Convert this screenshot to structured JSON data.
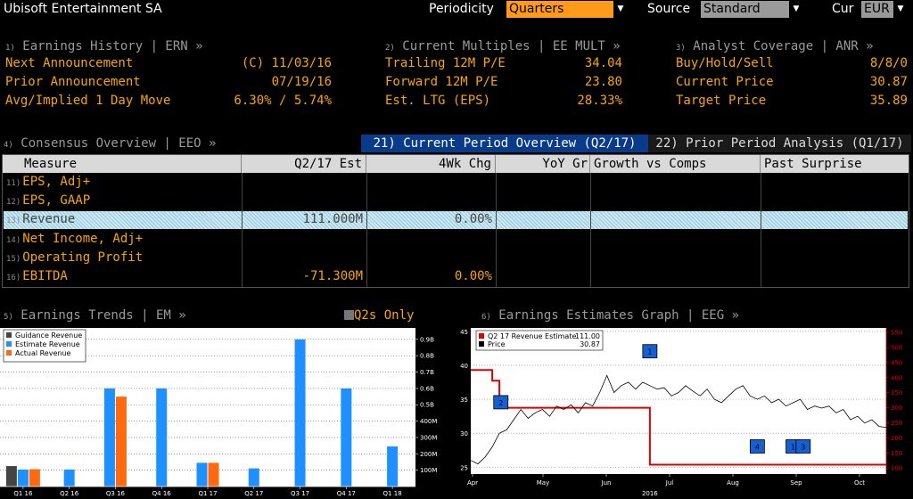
{
  "header": {
    "company": "Ubisoft Entertainment SA",
    "periodicity_label": "Periodicity",
    "periodicity_value": "Quarters",
    "source_label": "Source",
    "source_value": "Standard",
    "cur_label": "Cur",
    "cur_value": "EUR"
  },
  "sections": {
    "ern": {
      "num": "1)",
      "title": "Earnings History | ERN »",
      "rows": [
        {
          "label": "Next Announcement",
          "value": "(C)  11/03/16"
        },
        {
          "label": "Prior Announcement",
          "value": "07/19/16"
        },
        {
          "label": "Avg/Implied 1 Day Move",
          "value": "6.30% / 5.74%"
        }
      ]
    },
    "mult": {
      "num": "2)",
      "title": "Current Multiples | EE MULT »",
      "rows": [
        {
          "label": "Trailing 12M P/E",
          "value": "34.04"
        },
        {
          "label": "Forward 12M P/E",
          "value": "23.80"
        },
        {
          "label": "Est. LTG (EPS)",
          "value": "28.33%"
        }
      ]
    },
    "anr": {
      "num": "3)",
      "title": "Analyst Coverage | ANR »",
      "rows": [
        {
          "label": "Buy/Hold/Sell",
          "value": "8/8/0"
        },
        {
          "label": "Current Price",
          "value": "30.87"
        },
        {
          "label": "Target Price",
          "value": "35.89"
        }
      ]
    }
  },
  "consensus": {
    "num": "4)",
    "title": "Consensus Overview | EEO »",
    "tab_current": "21) Current Period Overview (Q2/17)",
    "tab_prior": "22) Prior Period Analysis (Q1/17)",
    "columns": [
      "Measure",
      "Q2/17 Est",
      "4Wk Chg",
      "YoY Gr",
      "Growth vs Comps",
      "Past Surprise"
    ],
    "rows": [
      {
        "num": "11)",
        "measure": "EPS, Adj+",
        "est": "",
        "chg": ""
      },
      {
        "num": "12)",
        "measure": "EPS, GAAP",
        "est": "",
        "chg": ""
      },
      {
        "num": "13)",
        "measure": "Revenue",
        "est": "111.000M",
        "chg": "0.00%"
      },
      {
        "num": "14)",
        "measure": "Net Income, Adj+",
        "est": "",
        "chg": ""
      },
      {
        "num": "15)",
        "measure": "Operating Profit",
        "est": "",
        "chg": ""
      },
      {
        "num": "16)",
        "measure": "EBITDA",
        "est": "-71.300M",
        "chg": "0.00%"
      }
    ]
  },
  "trends": {
    "num": "5)",
    "title": "Earnings Trends | EM »",
    "toggle_label": "Q2s Only",
    "colors": {
      "guidance": "#444444",
      "estimate": "#1e90ff",
      "actual": "#ff6a10"
    }
  },
  "eeg": {
    "num": "6)",
    "title": "Earnings Estimates Graph | EEG »",
    "colors": {
      "estimate": "#e00000",
      "price": "#ffffff",
      "marker": "#1560d0"
    }
  },
  "chart_data": [
    {
      "type": "bar",
      "legend": [
        "Guidance Revenue",
        "Estimate Revenue",
        "Actual Revenue"
      ],
      "legend_position": "top-left",
      "categories": [
        "Q1 16",
        "Q2 16",
        "Q3 16",
        "Q4 16",
        "Q1 17",
        "Q2 17",
        "Q3 17",
        "Q4 17",
        "Q1 18"
      ],
      "series": [
        {
          "name": "Guidance Revenue",
          "values": [
            0.125,
            null,
            null,
            null,
            null,
            null,
            null,
            null,
            null
          ]
        },
        {
          "name": "Estimate Revenue",
          "values": [
            0.104,
            0.104,
            0.6,
            0.6,
            0.145,
            0.111,
            0.9,
            0.6,
            0.245
          ]
        },
        {
          "name": "Actual Revenue",
          "values": [
            0.106,
            null,
            0.55,
            null,
            0.145,
            null,
            null,
            null,
            null
          ]
        }
      ],
      "y_ticks": [
        "100M",
        "200M",
        "300M",
        "400M",
        "0.5B",
        "0.6B",
        "0.7B",
        "0.8B",
        "0.9B"
      ],
      "ylim": [
        0.0,
        0.97
      ],
      "grid": true
    },
    {
      "type": "line",
      "legend": [
        {
          "name": "Q2 17 Revenue Estimate",
          "value": "111.00"
        },
        {
          "name": "Price",
          "value": "30.87"
        }
      ],
      "legend_position": "top-left",
      "x_ticks": [
        "Apr",
        "May",
        "Jun",
        "Jul",
        "Aug",
        "Sep",
        "Oct"
      ],
      "x_year": "2016",
      "left_ticks": [
        "25",
        "30",
        "35",
        "40",
        "45"
      ],
      "right_ticks": [
        "100",
        "150",
        "200",
        "250",
        "300",
        "350",
        "400",
        "450",
        "500",
        "550"
      ],
      "left_ylim": [
        24,
        45.5
      ],
      "right_ylim": [
        80,
        565
      ],
      "series": [
        {
          "name": "Price",
          "axis": "left",
          "x": [
            0,
            0.5,
            1,
            1.5,
            2,
            2.5,
            3,
            3.5,
            4,
            4.5,
            5,
            5.5,
            6,
            6.5,
            7,
            7.5,
            8,
            8.5,
            9,
            9.5,
            10,
            10.5,
            11,
            11.5,
            12,
            12.5,
            13,
            13.5,
            14,
            14.5,
            15,
            15.5,
            16,
            16.5,
            17,
            17.5,
            18,
            18.5,
            19,
            19.5,
            20,
            20.5,
            21,
            21.5,
            22,
            22.5,
            23,
            23.5,
            24,
            24.5,
            25,
            25.5,
            26,
            26.5,
            27,
            27.5,
            28,
            28.5,
            29
          ],
          "y": [
            26,
            25.5,
            26.5,
            28,
            30,
            30.5,
            32,
            33.5,
            32.2,
            33,
            33.5,
            32.5,
            34,
            33.5,
            34.2,
            33,
            34.5,
            34,
            36,
            38.5,
            36,
            37,
            37.5,
            36.5,
            37.5,
            37,
            36.5,
            36.7,
            35.5,
            36,
            37,
            36.2,
            35.5,
            36.5,
            35,
            34.5,
            35.5,
            36.5,
            37,
            35.5,
            35,
            35.5,
            34.5,
            35,
            34,
            34.5,
            35,
            33.5,
            34,
            33.7,
            34,
            33,
            33.5,
            32,
            32.5,
            31.5,
            32,
            31,
            30.87
          ]
        },
        {
          "name": "Q2 17 Revenue Estimate",
          "axis": "right",
          "step": true,
          "x": [
            0,
            1.5,
            1.5,
            2,
            2,
            12.5,
            12.5,
            29
          ],
          "y": [
            425,
            425,
            390,
            390,
            300,
            300,
            111,
            111
          ]
        }
      ],
      "markers": [
        {
          "label": "2",
          "x": 2.1,
          "y": 34.5
        },
        {
          "label": "1",
          "x": 12.5,
          "y": 42
        },
        {
          "label": "4",
          "x": 20,
          "y": 28
        },
        {
          "label": "1",
          "x": 22.5,
          "y": 28
        },
        {
          "label": "3",
          "x": 23.2,
          "y": 28
        }
      ]
    }
  ]
}
